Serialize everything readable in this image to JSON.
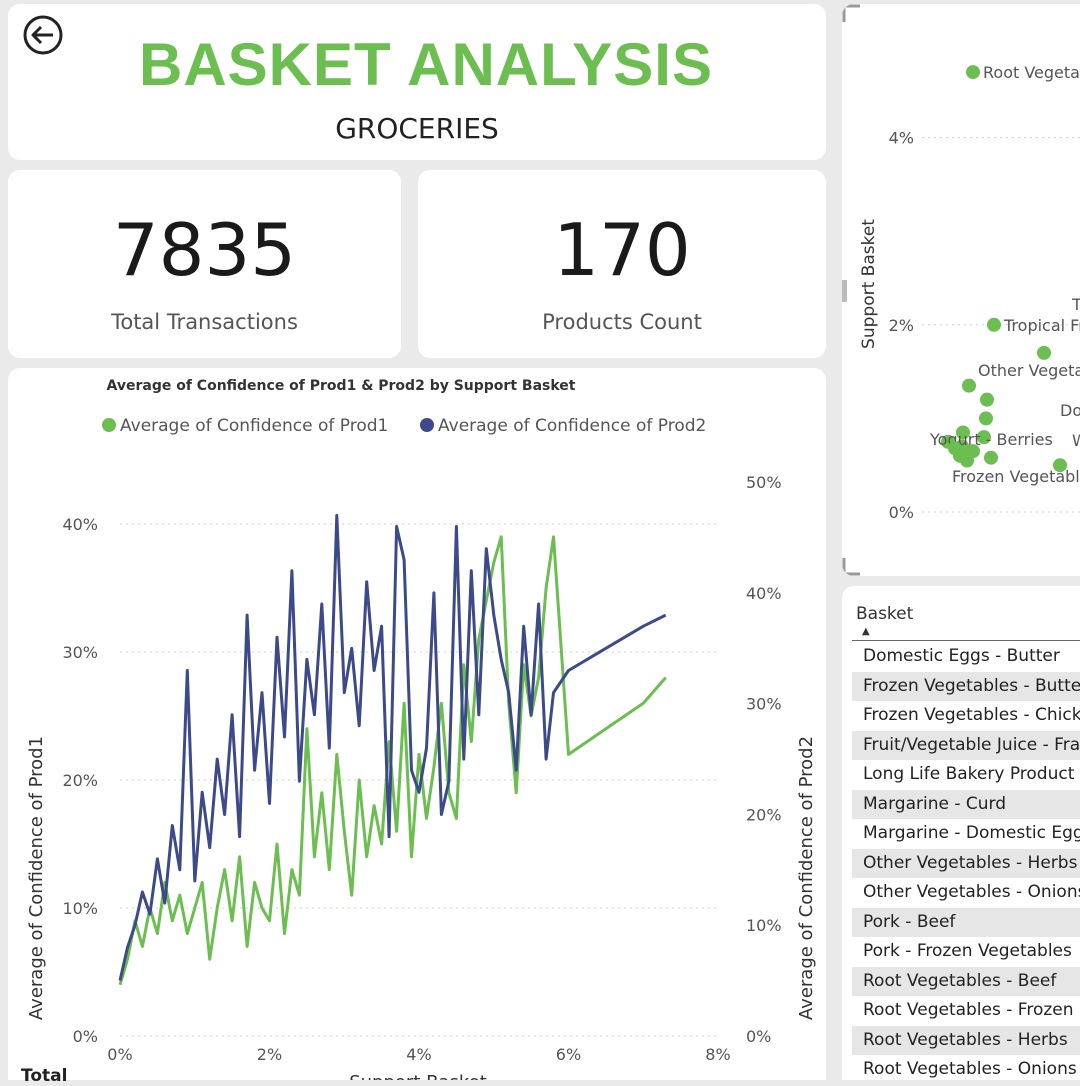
{
  "header": {
    "title": "BASKET ANALYSIS",
    "subtitle": "GROCERIES",
    "back_icon": "arrow-left-circle-icon",
    "accent_color": "#6bbe4f"
  },
  "kpis": [
    {
      "value": "7835",
      "label": "Total Transactions"
    },
    {
      "value": "170",
      "label": "Products Count"
    }
  ],
  "chart_data": [
    {
      "type": "line",
      "title": "Average of Confidence of Prod1 & Prod2 by Support Basket",
      "xlabel": "Support Basket",
      "ylabel": "Average of Confidence of Prod1",
      "y2label": "Average of Confidence of Prod2",
      "xlim": [
        0,
        8
      ],
      "ylim": [
        0,
        45
      ],
      "y2lim": [
        0,
        52
      ],
      "x_ticks": [
        "0%",
        "2%",
        "4%",
        "6%",
        "8%"
      ],
      "y_ticks": [
        "0%",
        "10%",
        "20%",
        "30%",
        "40%"
      ],
      "y2_ticks": [
        "0%",
        "10%",
        "20%",
        "30%",
        "40%",
        "50%"
      ],
      "grid": true,
      "legend": "top",
      "series": [
        {
          "name": "Average of Confidence of Prod1",
          "color": "#6bbe4f",
          "axis": "left",
          "x": [
            0,
            0.1,
            0.2,
            0.3,
            0.4,
            0.5,
            0.6,
            0.7,
            0.8,
            0.9,
            1.0,
            1.1,
            1.2,
            1.3,
            1.4,
            1.5,
            1.6,
            1.7,
            1.8,
            1.9,
            2.0,
            2.1,
            2.2,
            2.3,
            2.4,
            2.5,
            2.6,
            2.7,
            2.8,
            2.9,
            3.0,
            3.1,
            3.2,
            3.3,
            3.4,
            3.5,
            3.6,
            3.7,
            3.8,
            3.9,
            4.0,
            4.1,
            4.2,
            4.3,
            4.4,
            4.5,
            4.6,
            4.7,
            4.8,
            4.9,
            5.0,
            5.1,
            5.2,
            5.3,
            5.4,
            5.5,
            5.6,
            5.7,
            5.8,
            6.0,
            6.5,
            7.0,
            7.3
          ],
          "values": [
            4,
            6,
            9,
            7,
            10,
            8,
            12,
            9,
            11,
            8,
            10,
            12,
            6,
            10,
            13,
            9,
            14,
            7,
            12,
            10,
            9,
            15,
            8,
            13,
            11,
            24,
            14,
            19,
            13,
            22,
            16,
            11,
            20,
            14,
            18,
            15,
            23,
            16,
            26,
            14,
            22,
            17,
            21,
            26,
            19,
            17,
            29,
            23,
            31,
            34,
            37,
            39,
            26,
            19,
            29,
            25,
            28,
            35,
            39,
            22,
            24,
            26,
            28
          ]
        },
        {
          "name": "Average of Confidence of Prod2",
          "color": "#3d4a8a",
          "axis": "right",
          "x": [
            0,
            0.1,
            0.2,
            0.3,
            0.4,
            0.5,
            0.6,
            0.7,
            0.8,
            0.9,
            1.0,
            1.1,
            1.2,
            1.3,
            1.4,
            1.5,
            1.6,
            1.7,
            1.8,
            1.9,
            2.0,
            2.1,
            2.2,
            2.3,
            2.4,
            2.5,
            2.6,
            2.7,
            2.8,
            2.9,
            3.0,
            3.1,
            3.2,
            3.3,
            3.4,
            3.5,
            3.6,
            3.7,
            3.8,
            3.9,
            4.0,
            4.1,
            4.2,
            4.3,
            4.4,
            4.5,
            4.6,
            4.7,
            4.8,
            4.9,
            5.0,
            5.1,
            5.2,
            5.3,
            5.4,
            5.5,
            5.6,
            5.7,
            5.8,
            6.0,
            6.5,
            7.0,
            7.3
          ],
          "values": [
            5,
            8,
            10,
            13,
            11,
            16,
            12,
            19,
            15,
            33,
            14,
            22,
            17,
            25,
            20,
            29,
            18,
            38,
            24,
            31,
            21,
            36,
            27,
            42,
            23,
            34,
            29,
            39,
            26,
            47,
            31,
            35,
            28,
            41,
            33,
            37,
            18,
            46,
            43,
            24,
            22,
            26,
            40,
            20,
            23,
            46,
            25,
            42,
            29,
            44,
            38,
            34,
            31,
            24,
            37,
            29,
            39,
            25,
            31,
            33,
            35,
            37,
            38
          ]
        }
      ]
    },
    {
      "type": "scatter",
      "ylabel": "Support Basket",
      "y_ticks": [
        "0%",
        "2%",
        "4%"
      ],
      "ylim": [
        0,
        5
      ],
      "color": "#6bbe4f",
      "grid": true,
      "points": [
        {
          "label": "Root Vegetables",
          "y": 4.7
        },
        {
          "label": "Tropical Fruit",
          "y": 2.0
        },
        {
          "label": "",
          "y": 1.7
        },
        {
          "label": "Other Vegetables",
          "y": 1.35
        },
        {
          "label": "",
          "y": 1.2
        },
        {
          "label": "",
          "y": 1.0
        },
        {
          "label": "",
          "y": 0.85
        },
        {
          "label": "",
          "y": 0.8
        },
        {
          "label": "",
          "y": 0.75
        },
        {
          "label": "Yogurt - Berries",
          "y": 0.7
        },
        {
          "label": "",
          "y": 0.68
        },
        {
          "label": "",
          "y": 0.65
        },
        {
          "label": "",
          "y": 0.6
        },
        {
          "label": "",
          "y": 0.58
        },
        {
          "label": "",
          "y": 0.55
        },
        {
          "label": "Frozen Vegetables",
          "y": 0.5
        }
      ],
      "fragments": [
        "T",
        "Do",
        "W"
      ]
    }
  ],
  "table": {
    "header": "Basket",
    "sort_icon": "sort-ascending-icon",
    "rows": [
      "Domestic Eggs - Butter",
      "Frozen Vegetables - Butter",
      "Frozen Vegetables - Chicken",
      "Fruit/Vegetable Juice - Frankfurter",
      "Long Life Bakery Product",
      "Margarine - Curd",
      "Margarine - Domestic Eggs",
      "Other Vegetables - Herbs",
      "Other Vegetables - Onions",
      "Pork - Beef",
      "Pork - Frozen Vegetables",
      "Root Vegetables - Beef",
      "Root Vegetables - Frozen",
      "Root Vegetables - Herbs",
      "Root Vegetables - Onions"
    ],
    "total_label": "Total"
  }
}
